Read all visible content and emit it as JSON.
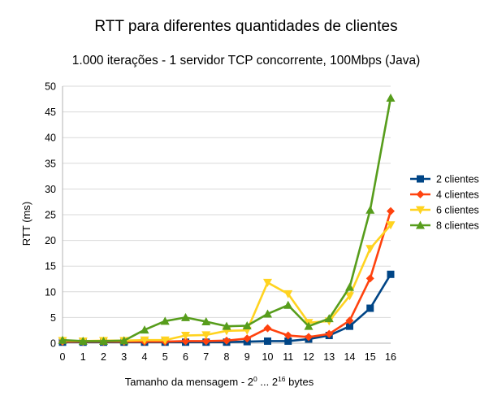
{
  "chart_data": {
    "type": "line",
    "title": "RTT para diferentes quantidades de clientes",
    "subtitle": "1.000 iterações - 1 servidor TCP concorrente, 100Mbps (Java)",
    "xlabel_prefix": "Tamanho da mensagem - 2",
    "xlabel_sup1": "0",
    "xlabel_mid": " ... 2",
    "xlabel_sup2": "16",
    "xlabel_suffix": " bytes",
    "ylabel": "RTT (ms)",
    "ylim": [
      0,
      50
    ],
    "yticks": [
      0,
      5,
      10,
      15,
      20,
      25,
      30,
      35,
      40,
      45,
      50
    ],
    "categories": [
      "0",
      "1",
      "2",
      "3",
      "4",
      "5",
      "6",
      "7",
      "8",
      "9",
      "10",
      "11",
      "12",
      "13",
      "14",
      "15",
      "16"
    ],
    "grid": "horizontal",
    "legend_position": "right",
    "series": [
      {
        "name": "2 clientes",
        "color": "#004586",
        "marker": "square",
        "values": [
          0.2,
          0.2,
          0.2,
          0.2,
          0.2,
          0.2,
          0.2,
          0.2,
          0.2,
          0.3,
          0.4,
          0.4,
          0.8,
          1.5,
          3.3,
          6.8,
          13.4
        ]
      },
      {
        "name": "4 clientes",
        "color": "#ff420e",
        "marker": "diamond",
        "values": [
          0.3,
          0.3,
          0.3,
          0.3,
          0.3,
          0.3,
          0.4,
          0.4,
          0.5,
          0.9,
          2.9,
          1.5,
          1.2,
          1.8,
          4.4,
          12.6,
          25.7
        ]
      },
      {
        "name": "6 clientes",
        "color": "#ffd320",
        "marker": "triangle-down",
        "values": [
          0.5,
          0.4,
          0.5,
          0.5,
          0.6,
          0.6,
          1.5,
          1.6,
          2.4,
          2.5,
          11.8,
          9.6,
          4.0,
          4.3,
          9.2,
          18.4,
          23.0
        ]
      },
      {
        "name": "8 clientes",
        "color": "#579d1c",
        "marker": "triangle-up",
        "values": [
          0.6,
          0.4,
          0.4,
          0.5,
          2.6,
          4.3,
          5.0,
          4.2,
          3.3,
          3.4,
          5.7,
          7.4,
          3.3,
          4.8,
          10.9,
          25.9,
          47.7
        ]
      }
    ]
  }
}
